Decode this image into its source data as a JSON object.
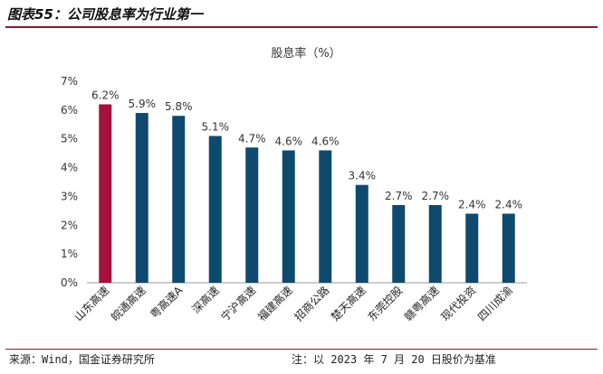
{
  "header": {
    "title": "图表55：公司股息率为行业第一"
  },
  "footer": {
    "source": "来源：Wind，国金证券研究所",
    "note": "注：以 2023 年 7 月 20 日股价为基准"
  },
  "chart_data": {
    "type": "bar",
    "title": "股息率（%）",
    "categories": [
      "山东高速",
      "皖通高速",
      "粤高速A",
      "深高速",
      "宁沪高速",
      "福建高速",
      "招商公路",
      "楚天高速",
      "东莞控股",
      "赣粤高速",
      "现代投资",
      "四川成渝"
    ],
    "values": [
      6.2,
      5.9,
      5.8,
      5.1,
      4.7,
      4.6,
      4.6,
      3.4,
      2.7,
      2.7,
      2.4,
      2.4
    ],
    "value_labels": [
      "6.2%",
      "5.9%",
      "5.8%",
      "5.1%",
      "4.7%",
      "4.6%",
      "4.6%",
      "3.4%",
      "2.7%",
      "2.7%",
      "2.4%",
      "2.4%"
    ],
    "y_ticks": [
      "0%",
      "1%",
      "2%",
      "3%",
      "4%",
      "5%",
      "6%",
      "7%"
    ],
    "ylim": [
      0,
      7
    ],
    "grid": false,
    "colors": {
      "highlight": "#a6103c",
      "default": "#0e4a6e"
    }
  }
}
